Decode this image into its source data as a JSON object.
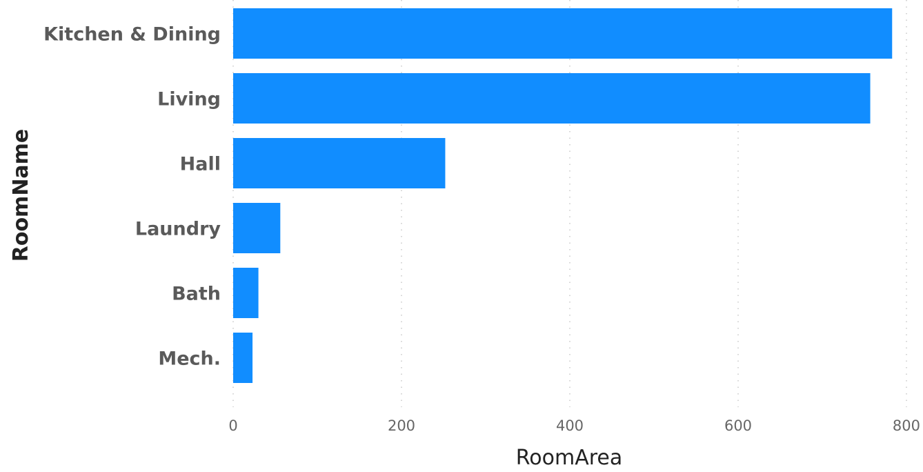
{
  "chart_data": {
    "type": "bar",
    "orientation": "horizontal",
    "categories": [
      "Kitchen & Dining",
      "Living",
      "Hall",
      "Laundry",
      "Bath",
      "Mech."
    ],
    "values": [
      783,
      757,
      252,
      56,
      30,
      23
    ],
    "xlabel": "RoomArea",
    "ylabel": "RoomName",
    "xlim": [
      0,
      800
    ],
    "ticks": [
      0,
      200,
      400,
      600,
      800
    ],
    "tick_labels": [
      "0",
      "200",
      "400",
      "600",
      "800"
    ],
    "grid": "vertical dotted",
    "bar_color": "#118dff"
  }
}
